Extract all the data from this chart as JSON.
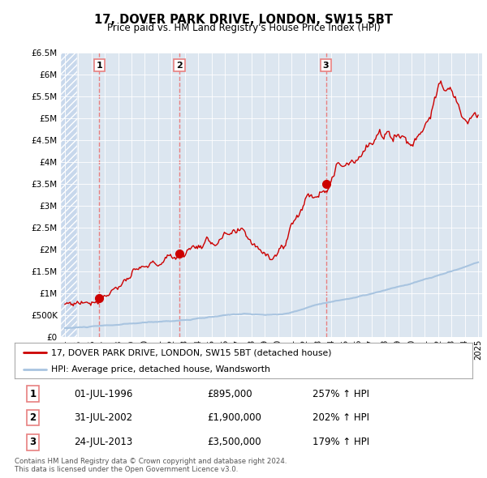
{
  "title": "17, DOVER PARK DRIVE, LONDON, SW15 5BT",
  "subtitle": "Price paid vs. HM Land Registry's House Price Index (HPI)",
  "sale_year_nums": [
    1996.583,
    2002.583,
    2013.583
  ],
  "sale_prices": [
    895000,
    1900000,
    3500000
  ],
  "sale_labels": [
    "1",
    "2",
    "3"
  ],
  "sale_date_labels": [
    "01-JUL-1996",
    "31-JUL-2002",
    "24-JUL-2013"
  ],
  "sale_price_labels": [
    "£895,000",
    "£1,900,000",
    "£3,500,000"
  ],
  "sale_pct_labels": [
    "257% ↑ HPI",
    "202% ↑ HPI",
    "179% ↑ HPI"
  ],
  "hpi_line_color": "#a8c4e0",
  "price_line_color": "#cc0000",
  "vline_color": "#e88080",
  "background_color": "#ffffff",
  "plot_bg_color": "#dce6f0",
  "legend_label_price": "17, DOVER PARK DRIVE, LONDON, SW15 5BT (detached house)",
  "legend_label_hpi": "HPI: Average price, detached house, Wandsworth",
  "ylim": [
    0,
    6500000
  ],
  "yticks": [
    0,
    500000,
    1000000,
    1500000,
    2000000,
    2500000,
    3000000,
    3500000,
    4000000,
    4500000,
    5000000,
    5500000,
    6000000,
    6500000
  ],
  "ytick_labels": [
    "£0",
    "£500K",
    "£1M",
    "£1.5M",
    "£2M",
    "£2.5M",
    "£3M",
    "£3.5M",
    "£4M",
    "£4.5M",
    "£5M",
    "£5.5M",
    "£6M",
    "£6.5M"
  ],
  "xlim_left": 1993.7,
  "xlim_right": 2025.3,
  "xtick_years": [
    1994,
    1995,
    1996,
    1997,
    1998,
    1999,
    2000,
    2001,
    2002,
    2003,
    2004,
    2005,
    2006,
    2007,
    2008,
    2009,
    2010,
    2011,
    2012,
    2013,
    2014,
    2015,
    2016,
    2017,
    2018,
    2019,
    2020,
    2021,
    2022,
    2023,
    2024,
    2025
  ],
  "footnote": "Contains HM Land Registry data © Crown copyright and database right 2024.\nThis data is licensed under the Open Government Licence v3.0.",
  "table_rows": [
    [
      "1",
      "01-JUL-1996",
      "£895,000",
      "257% ↑ HPI"
    ],
    [
      "2",
      "31-JUL-2002",
      "£1,900,000",
      "202% ↑ HPI"
    ],
    [
      "3",
      "24-JUL-2013",
      "£3,500,000",
      "179% ↑ HPI"
    ]
  ],
  "hatch_color": "#c8d8ec"
}
